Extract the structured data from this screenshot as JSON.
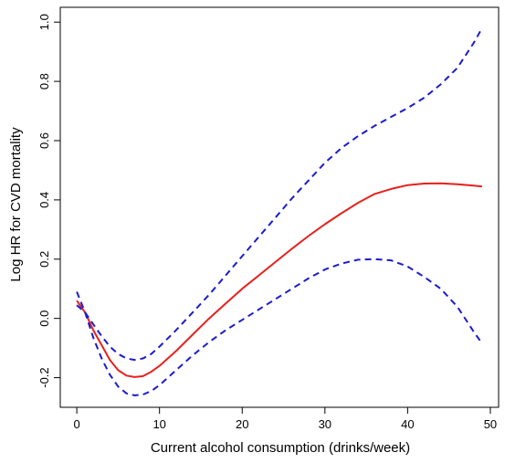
{
  "chart_data": {
    "type": "line",
    "title": "",
    "xlabel": "Current alcohol consumption (drinks/week)",
    "ylabel": "Log HR for CVD mortality",
    "xlim": [
      -2,
      51
    ],
    "ylim": [
      -0.3,
      1.05
    ],
    "x_ticks": [
      0,
      10,
      20,
      30,
      40,
      50
    ],
    "x_tick_labels": [
      "0",
      "10",
      "20",
      "30",
      "40",
      "50"
    ],
    "y_ticks": [
      -0.2,
      0.0,
      0.2,
      0.4,
      0.6,
      0.8,
      1.0
    ],
    "y_tick_labels": [
      "-0.2",
      "0.0",
      "0.2",
      "0.4",
      "0.6",
      "0.8",
      "1.0"
    ],
    "grid": false,
    "legend": "none",
    "series": [
      {
        "role": "estimate",
        "color": "#e8201c",
        "line_style": "solid",
        "x": [
          0,
          1,
          2,
          3,
          4,
          5,
          6,
          7,
          8,
          9,
          10,
          12,
          14,
          16,
          18,
          20,
          22,
          24,
          26,
          28,
          30,
          32,
          34,
          36,
          38,
          40,
          42,
          44,
          46,
          48,
          49
        ],
        "y": [
          0.06,
          0.02,
          -0.04,
          -0.09,
          -0.14,
          -0.175,
          -0.193,
          -0.198,
          -0.195,
          -0.18,
          -0.16,
          -0.11,
          -0.055,
          0.0,
          0.05,
          0.1,
          0.145,
          0.19,
          0.235,
          0.278,
          0.318,
          0.355,
          0.39,
          0.42,
          0.437,
          0.45,
          0.455,
          0.456,
          0.453,
          0.448,
          0.445
        ]
      },
      {
        "role": "upper-ci",
        "color": "#1c1ccc",
        "line_style": "dashed",
        "x": [
          0,
          1,
          2,
          3,
          4,
          5,
          6,
          7,
          8,
          9,
          10,
          12,
          14,
          16,
          18,
          20,
          22,
          24,
          26,
          28,
          30,
          32,
          34,
          36,
          38,
          40,
          42,
          44,
          46,
          48,
          49
        ],
        "y": [
          0.045,
          0.02,
          -0.02,
          -0.06,
          -0.095,
          -0.12,
          -0.135,
          -0.14,
          -0.135,
          -0.12,
          -0.095,
          -0.04,
          0.02,
          0.08,
          0.145,
          0.21,
          0.275,
          0.34,
          0.405,
          0.465,
          0.525,
          0.575,
          0.615,
          0.65,
          0.68,
          0.71,
          0.745,
          0.79,
          0.845,
          0.93,
          0.98
        ]
      },
      {
        "role": "lower-ci",
        "color": "#1c1ccc",
        "line_style": "dashed",
        "x": [
          0,
          1,
          2,
          3,
          4,
          5,
          6,
          7,
          8,
          9,
          10,
          12,
          14,
          16,
          18,
          20,
          22,
          24,
          26,
          28,
          30,
          32,
          34,
          36,
          38,
          40,
          42,
          44,
          46,
          48,
          49
        ],
        "y": [
          0.09,
          0.02,
          -0.065,
          -0.135,
          -0.19,
          -0.23,
          -0.253,
          -0.26,
          -0.257,
          -0.245,
          -0.225,
          -0.175,
          -0.125,
          -0.08,
          -0.04,
          -0.005,
          0.03,
          0.065,
          0.1,
          0.135,
          0.165,
          0.185,
          0.198,
          0.2,
          0.196,
          0.175,
          0.14,
          0.1,
          0.04,
          -0.045,
          -0.085
        ]
      }
    ]
  }
}
